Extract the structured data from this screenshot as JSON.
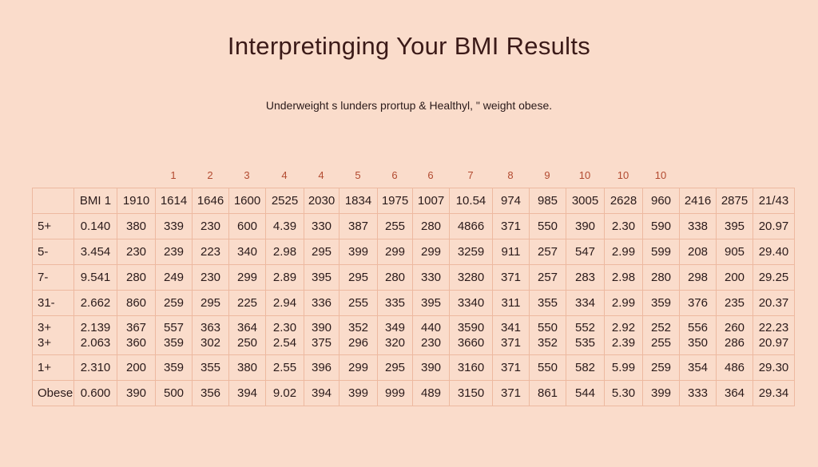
{
  "title": "Interpretinging Your BMI Results",
  "subtitle": "Underweight s lunders prortup & Healthyl, \" weight obese.",
  "column_numbers": [
    "1",
    "2",
    "3",
    "4",
    "4",
    "5",
    "6",
    "6",
    "7",
    "8",
    "9",
    "10",
    "10",
    "10"
  ],
  "header_row": [
    "",
    "BMI 1",
    "1910",
    "1614",
    "1646",
    "1600",
    "2525",
    "2030",
    "1834",
    "1975",
    "1007",
    "10.54",
    "974",
    "985",
    "3005",
    "2628",
    "960",
    "2416",
    "2875",
    "21/43"
  ],
  "rows": [
    {
      "label": "5+",
      "cells": [
        "0.140",
        "380",
        "339",
        "230",
        "600",
        "4.39",
        "330",
        "387",
        "255",
        "280",
        "4866",
        "371",
        "550",
        "390",
        "2.30",
        "590",
        "338",
        "395",
        "20.97"
      ]
    },
    {
      "label": "5-",
      "cells": [
        "3.454",
        "230",
        "239",
        "223",
        "340",
        "2.98",
        "295",
        "399",
        "299",
        "299",
        "3259",
        "911",
        "257",
        "547",
        "2.99",
        "599",
        "208",
        "905",
        "29.40"
      ]
    },
    {
      "label": "7-",
      "cells": [
        "9.541",
        "280",
        "249",
        "230",
        "299",
        "2.89",
        "395",
        "295",
        "280",
        "330",
        "3280",
        "371",
        "257",
        "283",
        "2.98",
        "280",
        "298",
        "200",
        "29.25"
      ]
    },
    {
      "label": "31-",
      "cells": [
        "2.662",
        "860",
        "259",
        "295",
        "225",
        "2.94",
        "336",
        "255",
        "335",
        "395",
        "3340",
        "311",
        "355",
        "334",
        "2.99",
        "359",
        "376",
        "235",
        "20.37"
      ]
    },
    {
      "label": "3+\n3+",
      "tall": true,
      "cells": [
        "2.139\n2.063",
        "367\n360",
        "557\n359",
        "363\n302",
        "364\n250",
        "2.30\n2.54",
        "390\n375",
        "352\n296",
        "349\n320",
        "440\n230",
        "3590\n3660",
        "341\n371",
        "550\n352",
        "552\n535",
        "2.92\n2.39",
        "252\n255",
        "556\n350",
        "260\n286",
        "22.23\n20.97"
      ]
    },
    {
      "label": "1+",
      "cells": [
        "2.310",
        "200",
        "359",
        "355",
        "380",
        "2.55",
        "396",
        "299",
        "295",
        "390",
        "3160",
        "371",
        "550",
        "582",
        "5.99",
        "259",
        "354",
        "486",
        "29.30"
      ]
    },
    {
      "label": "Obese",
      "cells": [
        "0.600",
        "390",
        "500",
        "356",
        "394",
        "9.02",
        "394",
        "399",
        "999",
        "489",
        "3150",
        "371",
        "861",
        "544",
        "5.30",
        "399",
        "333",
        "364",
        "29.34"
      ]
    }
  ]
}
